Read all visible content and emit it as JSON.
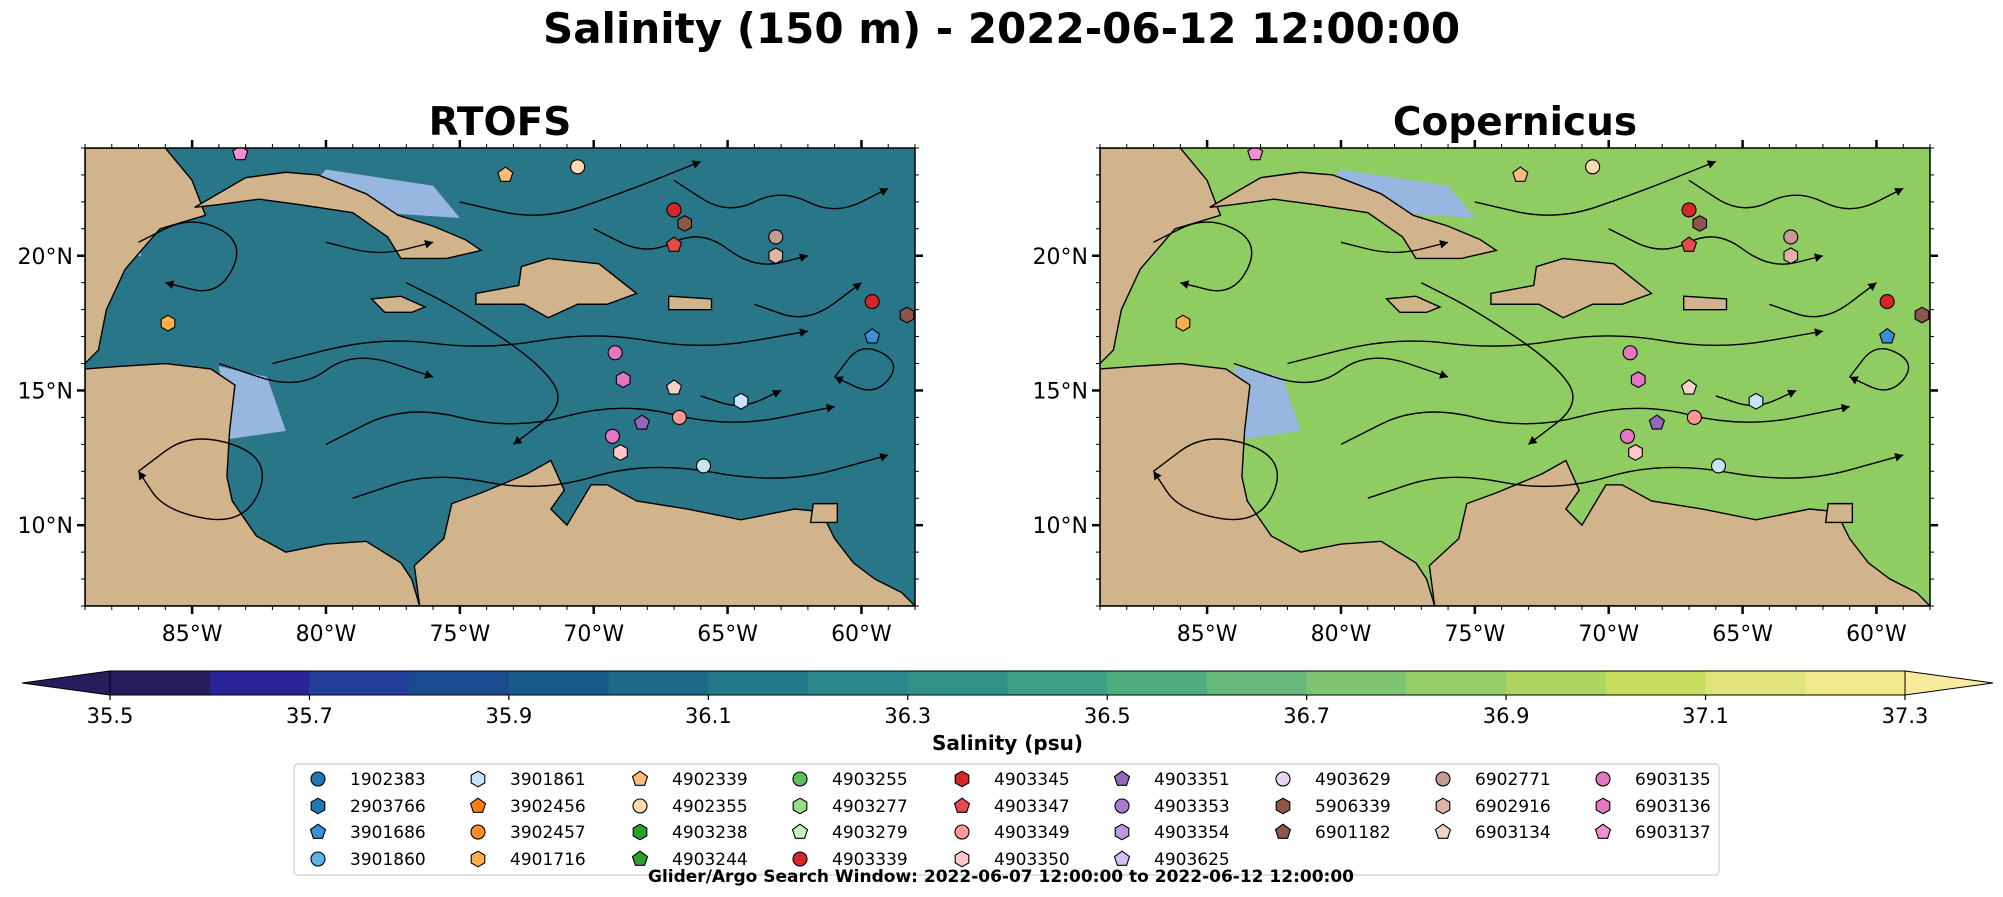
{
  "figure": {
    "suptitle": "Salinity (150 m) - 2022-06-12 12:00:00",
    "footer": "Glider/Argo Search Window: 2022-06-07 12:00:00 to 2022-06-12 12:00:00"
  },
  "map_extent": {
    "lon_min": -89,
    "lon_max": -58,
    "lat_min": 7,
    "lat_max": 24
  },
  "lat_ticks": [
    {
      "value": 20,
      "label": "20°N"
    },
    {
      "value": 15,
      "label": "15°N"
    },
    {
      "value": 10,
      "label": "10°N"
    }
  ],
  "lon_ticks": [
    {
      "value": -85,
      "label": "85°W"
    },
    {
      "value": -80,
      "label": "80°W"
    },
    {
      "value": -75,
      "label": "75°W"
    },
    {
      "value": -70,
      "label": "70°W"
    },
    {
      "value": -65,
      "label": "65°W"
    },
    {
      "value": -60,
      "label": "60°W"
    }
  ],
  "panels": [
    {
      "id": "rtofs",
      "title": "RTOFS",
      "base_color": "#2a7689"
    },
    {
      "id": "copernicus",
      "title": "Copernicus",
      "base_color": "#8fcd63"
    }
  ],
  "colorbar": {
    "label": "Salinity (psu)",
    "min": 35.5,
    "max": 37.3,
    "step": 0.1,
    "ticks": [
      "35.5",
      "35.7",
      "35.9",
      "36.1",
      "36.3",
      "36.5",
      "36.7",
      "36.9",
      "37.1",
      "37.3"
    ],
    "colors": [
      "#261d5e",
      "#2a2398",
      "#233d9a",
      "#1b4a8f",
      "#165a88",
      "#1c6a87",
      "#23798a",
      "#2a888a",
      "#309287",
      "#3da085",
      "#50ad7f",
      "#66b97a",
      "#7ec472",
      "#95cd66",
      "#aed55f",
      "#c8dd5e",
      "#e0e47a",
      "#f1e88c"
    ]
  },
  "legend": {
    "columns": [
      [
        {
          "label": "1902383",
          "shape": "circle",
          "color": "#1f77b4"
        },
        {
          "label": "2903766",
          "shape": "hexagon",
          "color": "#1f77b4"
        },
        {
          "label": "3901686",
          "shape": "pentagon",
          "color": "#3a8fd6"
        },
        {
          "label": "3901860",
          "shape": "circle",
          "color": "#5ab4e8"
        }
      ],
      [
        {
          "label": "3901861",
          "shape": "hexagon",
          "color": "#c6e4f5"
        },
        {
          "label": "3902456",
          "shape": "pentagon",
          "color": "#ff7f0e"
        },
        {
          "label": "3902457",
          "shape": "circle",
          "color": "#ff8c28"
        },
        {
          "label": "4901716",
          "shape": "hexagon",
          "color": "#ffae4a"
        }
      ],
      [
        {
          "label": "4902339",
          "shape": "pentagon",
          "color": "#ffbb78"
        },
        {
          "label": "4902355",
          "shape": "circle",
          "color": "#ffdcb0"
        },
        {
          "label": "4903238",
          "shape": "hexagon",
          "color": "#2ca02c"
        },
        {
          "label": "4903244",
          "shape": "pentagon",
          "color": "#2ca02c"
        }
      ],
      [
        {
          "label": "4903255",
          "shape": "circle",
          "color": "#5cc25c"
        },
        {
          "label": "4903277",
          "shape": "hexagon",
          "color": "#98df8a"
        },
        {
          "label": "4903279",
          "shape": "pentagon",
          "color": "#c8f0c0"
        },
        {
          "label": "4903339",
          "shape": "circle",
          "color": "#d62728"
        }
      ],
      [
        {
          "label": "4903345",
          "shape": "hexagon",
          "color": "#d62728"
        },
        {
          "label": "4903347",
          "shape": "pentagon",
          "color": "#e34a4b"
        },
        {
          "label": "4903349",
          "shape": "circle",
          "color": "#ff9896"
        },
        {
          "label": "4903350",
          "shape": "hexagon",
          "color": "#ffc8c6"
        }
      ],
      [
        {
          "label": "4903351",
          "shape": "pentagon",
          "color": "#9467bd"
        },
        {
          "label": "4903353",
          "shape": "circle",
          "color": "#a47fd0"
        },
        {
          "label": "4903354",
          "shape": "hexagon",
          "color": "#b89ae0"
        },
        {
          "label": "4903625",
          "shape": "pentagon",
          "color": "#d3c0ee"
        }
      ],
      [
        {
          "label": "4903629",
          "shape": "circle",
          "color": "#e6d4f7"
        },
        {
          "label": "5906339",
          "shape": "hexagon",
          "color": "#8c564b"
        },
        {
          "label": "6901182",
          "shape": "pentagon",
          "color": "#8c564b"
        }
      ],
      [
        {
          "label": "6902771",
          "shape": "circle",
          "color": "#c49c94"
        },
        {
          "label": "6902916",
          "shape": "hexagon",
          "color": "#e0b3a8"
        },
        {
          "label": "6903134",
          "shape": "pentagon",
          "color": "#f3d2c8"
        }
      ],
      [
        {
          "label": "6903135",
          "shape": "circle",
          "color": "#e377c2"
        },
        {
          "label": "6903136",
          "shape": "hexagon",
          "color": "#e377c2"
        },
        {
          "label": "6903137",
          "shape": "pentagon",
          "color": "#f08fd4"
        }
      ]
    ]
  },
  "floats": [
    {
      "lon": -83.2,
      "lat": 23.8,
      "shape": "pentagon",
      "color": "#f08fd4"
    },
    {
      "lon": -73.3,
      "lat": 23.0,
      "shape": "pentagon",
      "color": "#ffbb78"
    },
    {
      "lon": -70.6,
      "lat": 23.3,
      "shape": "circle",
      "color": "#ffdcb0"
    },
    {
      "lon": -67.0,
      "lat": 21.7,
      "shape": "circle",
      "color": "#d62728"
    },
    {
      "lon": -66.6,
      "lat": 21.2,
      "shape": "hexagon",
      "color": "#8c564b"
    },
    {
      "lon": -67.0,
      "lat": 20.4,
      "shape": "pentagon",
      "color": "#e34a4b"
    },
    {
      "lon": -63.2,
      "lat": 20.7,
      "shape": "circle",
      "color": "#c49c94"
    },
    {
      "lon": -63.2,
      "lat": 20.0,
      "shape": "hexagon",
      "color": "#e0b3a8"
    },
    {
      "lon": -59.6,
      "lat": 18.3,
      "shape": "circle",
      "color": "#d62728"
    },
    {
      "lon": -58.3,
      "lat": 17.8,
      "shape": "hexagon",
      "color": "#8c564b"
    },
    {
      "lon": -85.9,
      "lat": 17.5,
      "shape": "hexagon",
      "color": "#ffae4a"
    },
    {
      "lon": -59.6,
      "lat": 17.0,
      "shape": "pentagon",
      "color": "#3a8fd6"
    },
    {
      "lon": -69.2,
      "lat": 16.4,
      "shape": "circle",
      "color": "#e377c2"
    },
    {
      "lon": -68.9,
      "lat": 15.4,
      "shape": "hexagon",
      "color": "#e377c2"
    },
    {
      "lon": -67.0,
      "lat": 15.1,
      "shape": "pentagon",
      "color": "#f3d2c8"
    },
    {
      "lon": -64.5,
      "lat": 14.6,
      "shape": "hexagon",
      "color": "#c6e4f5"
    },
    {
      "lon": -66.8,
      "lat": 14.0,
      "shape": "circle",
      "color": "#ff9896"
    },
    {
      "lon": -68.2,
      "lat": 13.8,
      "shape": "pentagon",
      "color": "#9467bd"
    },
    {
      "lon": -69.3,
      "lat": 13.3,
      "shape": "circle",
      "color": "#e377c2"
    },
    {
      "lon": -69.0,
      "lat": 12.7,
      "shape": "hexagon",
      "color": "#ffc8c6"
    },
    {
      "lon": -65.9,
      "lat": 12.2,
      "shape": "circle",
      "color": "#c6e4f5"
    }
  ]
}
